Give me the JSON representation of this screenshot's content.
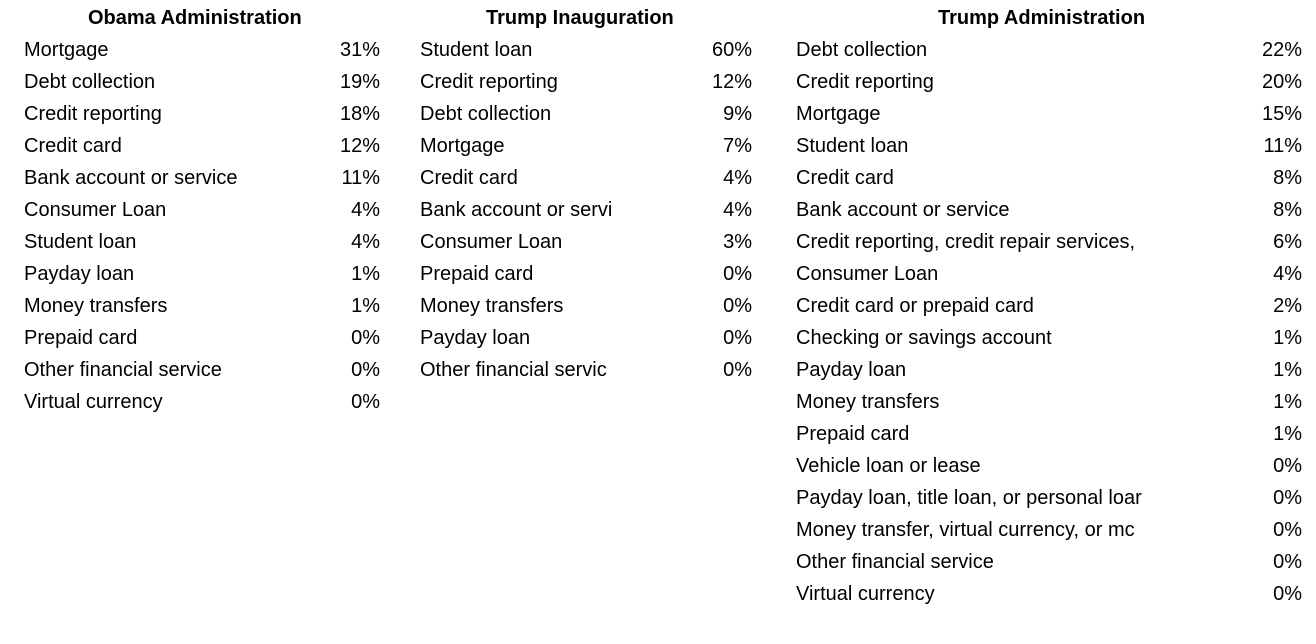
{
  "panels": [
    {
      "title": "Obama Administration",
      "rows": [
        {
          "label": "Mortgage",
          "value": "31%"
        },
        {
          "label": "Debt collection",
          "value": "19%"
        },
        {
          "label": "Credit reporting",
          "value": "18%"
        },
        {
          "label": "Credit card",
          "value": "12%"
        },
        {
          "label": "Bank account or service",
          "value": "11%"
        },
        {
          "label": "Consumer Loan",
          "value": "4%"
        },
        {
          "label": "Student loan",
          "value": "4%"
        },
        {
          "label": "Payday loan",
          "value": "1%"
        },
        {
          "label": "Money transfers",
          "value": "1%"
        },
        {
          "label": "Prepaid card",
          "value": "0%"
        },
        {
          "label": "Other financial service",
          "value": "0%"
        },
        {
          "label": "Virtual currency",
          "value": "0%"
        }
      ]
    },
    {
      "title": "Trump Inauguration",
      "rows": [
        {
          "label": "Student loan",
          "value": "60%"
        },
        {
          "label": "Credit reporting",
          "value": "12%"
        },
        {
          "label": "Debt collection",
          "value": "9%"
        },
        {
          "label": "Mortgage",
          "value": "7%"
        },
        {
          "label": "Credit card",
          "value": "4%"
        },
        {
          "label": "Bank account or servi",
          "value": "4%"
        },
        {
          "label": "Consumer Loan",
          "value": "3%"
        },
        {
          "label": "Prepaid card",
          "value": "0%"
        },
        {
          "label": "Money transfers",
          "value": "0%"
        },
        {
          "label": "Payday loan",
          "value": "0%"
        },
        {
          "label": "Other financial servic",
          "value": "0%"
        }
      ]
    },
    {
      "title": "Trump Administration",
      "rows": [
        {
          "label": "Debt collection",
          "value": "22%"
        },
        {
          "label": "Credit reporting",
          "value": "20%"
        },
        {
          "label": "Mortgage",
          "value": "15%"
        },
        {
          "label": "Student loan",
          "value": "11%"
        },
        {
          "label": "Credit card",
          "value": "8%"
        },
        {
          "label": "Bank account or service",
          "value": "8%"
        },
        {
          "label": "Credit reporting, credit repair services,",
          "value": "6%"
        },
        {
          "label": "Consumer Loan",
          "value": "4%"
        },
        {
          "label": "Credit card or prepaid card",
          "value": "2%"
        },
        {
          "label": "Checking or savings account",
          "value": "1%"
        },
        {
          "label": "Payday loan",
          "value": "1%"
        },
        {
          "label": "Money transfers",
          "value": "1%"
        },
        {
          "label": "Prepaid card",
          "value": "1%"
        },
        {
          "label": "Vehicle loan or lease",
          "value": "0%"
        },
        {
          "label": "Payday loan, title loan, or personal loar",
          "value": "0%"
        },
        {
          "label": "Money transfer, virtual currency, or mc",
          "value": "0%"
        },
        {
          "label": "Other financial service",
          "value": "0%"
        },
        {
          "label": "Virtual currency",
          "value": "0%"
        }
      ]
    }
  ]
}
